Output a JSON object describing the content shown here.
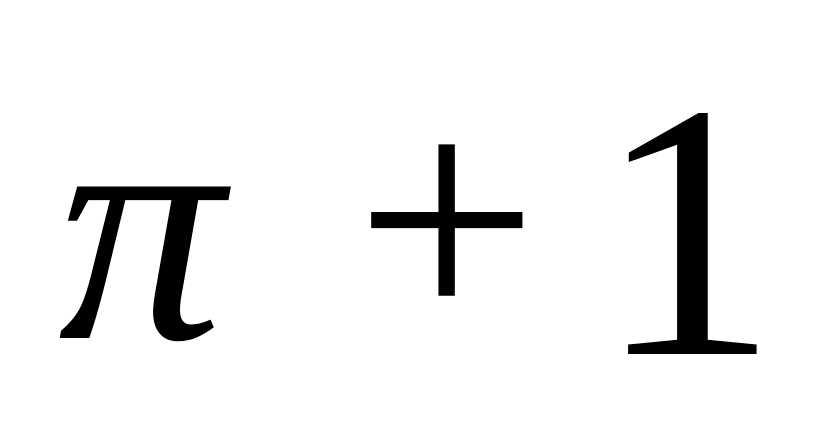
{
  "expression": {
    "symbol": "π",
    "operator": "+",
    "number": "1"
  },
  "colors": {
    "background": "#ffffff",
    "text": "#000000"
  }
}
